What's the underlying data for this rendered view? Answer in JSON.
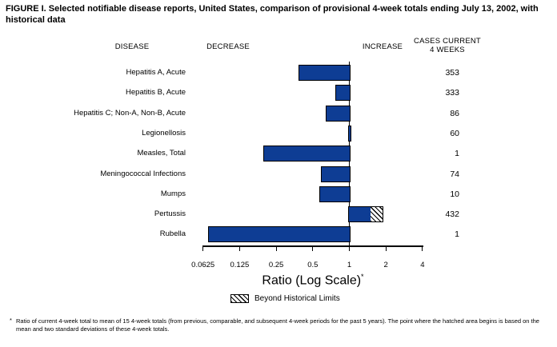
{
  "title": "FIGURE I. Selected notifiable disease reports, United States, comparison of provisional 4-week totals ending July 13, 2002, with historical data",
  "columns": {
    "disease": "DISEASE",
    "decrease": "DECREASE",
    "increase": "INCREASE",
    "cases_line1": "CASES CURRENT",
    "cases_line2": "4 WEEKS"
  },
  "chart_data": {
    "type": "bar",
    "orientation": "horizontal",
    "scale": "log",
    "title": "Selected notifiable disease reports, comparison of provisional 4-week totals ending July 13, 2002, with historical data",
    "xlabel": "Ratio (Log Scale)",
    "axis": {
      "label": "Ratio (Log Scale)",
      "label_superscript": "*",
      "ticks": [
        0.0625,
        0.125,
        0.25,
        0.5,
        1,
        2,
        4
      ],
      "tick_labels": [
        "0.0625",
        "0.125",
        "0.25",
        "0.5",
        "1",
        "2",
        "4"
      ],
      "range": [
        0.0625,
        4
      ],
      "baseline": 1
    },
    "rows": [
      {
        "disease": "Hepatitis A, Acute",
        "ratio": 0.39,
        "hatch_start": null,
        "beyond_historical_limits": false,
        "cases": "353"
      },
      {
        "disease": "Hepatitis B, Acute",
        "ratio": 0.78,
        "hatch_start": null,
        "beyond_historical_limits": false,
        "cases": "333"
      },
      {
        "disease": "Hepatitis C; Non-A, Non-B, Acute",
        "ratio": 0.65,
        "hatch_start": null,
        "beyond_historical_limits": false,
        "cases": "86"
      },
      {
        "disease": "Legionellosis",
        "ratio": 1.02,
        "hatch_start": null,
        "beyond_historical_limits": false,
        "cases": "60"
      },
      {
        "disease": "Measles, Total",
        "ratio": 0.2,
        "hatch_start": null,
        "beyond_historical_limits": false,
        "cases": "1"
      },
      {
        "disease": "Meningococcal Infections",
        "ratio": 0.6,
        "hatch_start": null,
        "beyond_historical_limits": false,
        "cases": "74"
      },
      {
        "disease": "Mumps",
        "ratio": 0.58,
        "hatch_start": null,
        "beyond_historical_limits": false,
        "cases": "10"
      },
      {
        "disease": "Pertussis",
        "ratio": 1.85,
        "hatch_start": 1.5,
        "beyond_historical_limits": true,
        "cases": "432"
      },
      {
        "disease": "Rubella",
        "ratio": 0.07,
        "hatch_start": null,
        "beyond_historical_limits": false,
        "cases": "1"
      }
    ],
    "legend": {
      "label": "Beyond Historical Limits",
      "position": "bottom"
    },
    "colors": {
      "bar": "#0e3d94",
      "bar_border": "#000000",
      "axis": "#000000"
    }
  },
  "footnote": {
    "marker": "*",
    "text": "Ratio of current 4-week total to mean of 15 4-week totals (from previous, comparable, and subsequent 4-week periods for the past 5 years). The point where the hatched area begins is based on the mean and two standard deviations of these 4-week totals."
  }
}
